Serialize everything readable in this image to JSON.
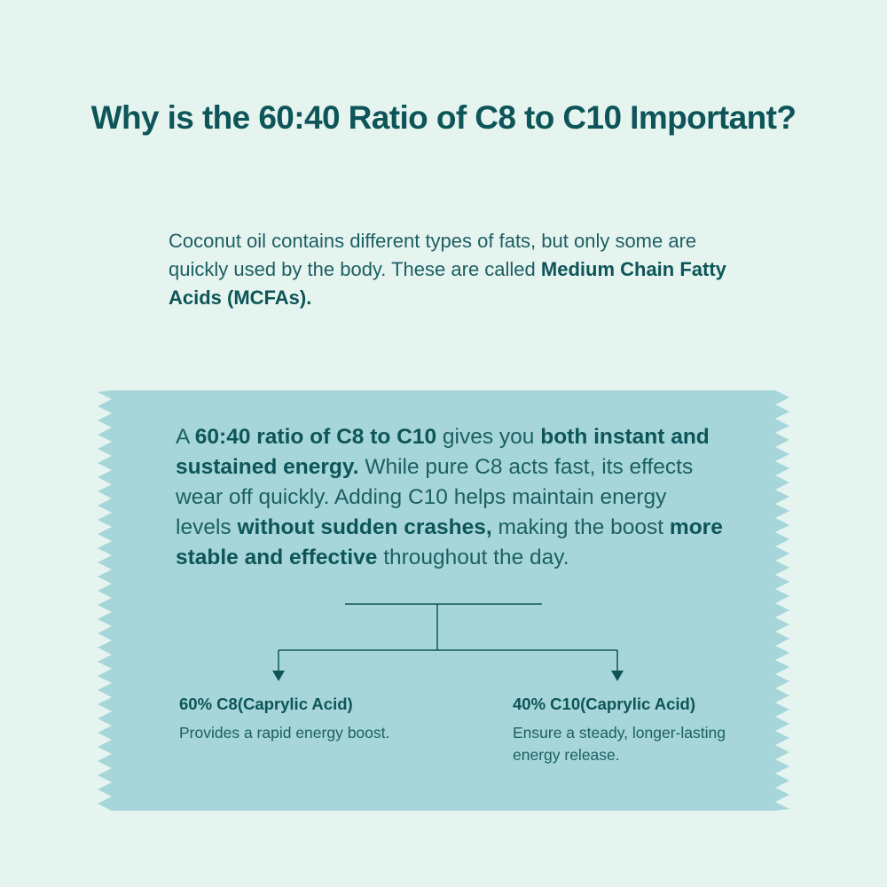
{
  "title": "Why is the 60:40 Ratio of C8 to C10 Important?",
  "intro": {
    "text_before": "Coconut oil contains different types of fats, but only some are quickly used by the body. These are called ",
    "bold": "Medium Chain Fatty Acids (MCFAs)."
  },
  "callout": {
    "t1": "A ",
    "b1": "60:40 ratio of C8 to C10",
    "t2": " gives you ",
    "b2": "both instant and sustained energy.",
    "t3": " While pure C8 acts fast, its effects wear off quickly. Adding C10 helps maintain energy levels ",
    "b3": "without sudden crashes,",
    "t4": " making the boost ",
    "b4": "more stable and effective",
    "t5": " throughout the day."
  },
  "left": {
    "heading": "60% C8(Caprylic Acid)",
    "desc": "Provides a rapid energy boost."
  },
  "right": {
    "heading": "40% C10(Caprylic Acid)",
    "desc": "Ensure a steady, longer-lasting energy release."
  },
  "colors": {
    "background": "#e6f4f0",
    "ribbon": "#a6d6d9",
    "text_dark": "#0d5558"
  },
  "icons": [
    "down-arrow-icon",
    "down-arrow-icon"
  ]
}
